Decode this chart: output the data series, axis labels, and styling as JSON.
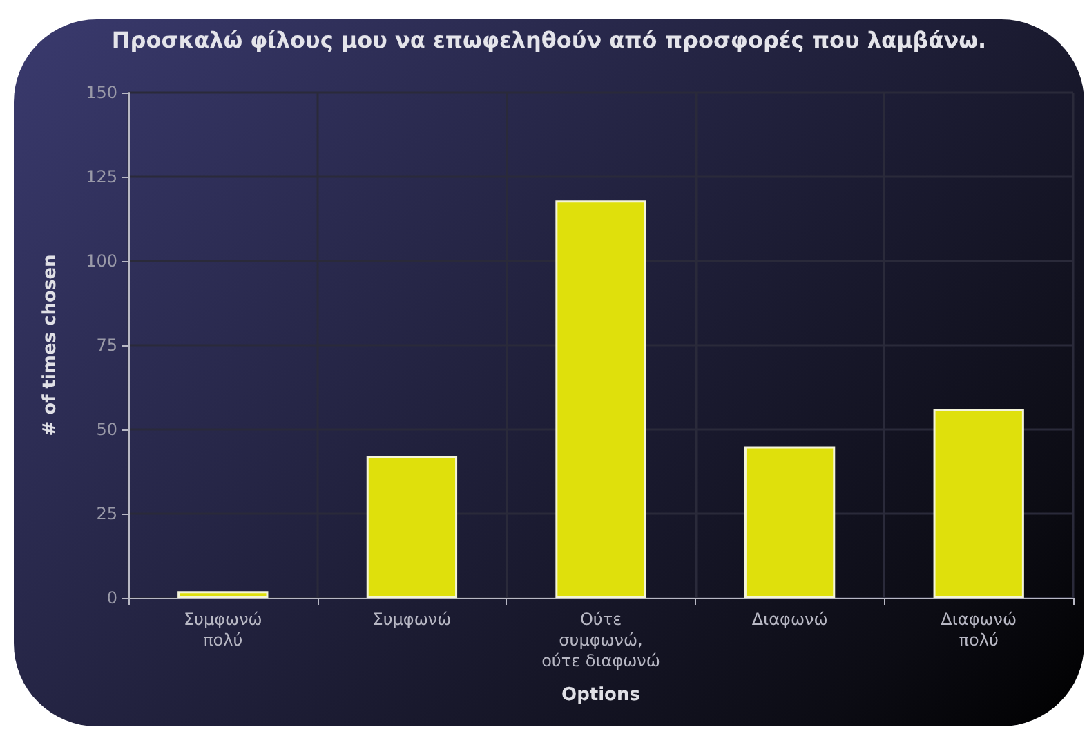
{
  "chart_data": {
    "type": "bar",
    "title": "Προσκαλώ φίλους μου να επωφεληθούν από προσφορές που λαμβάνω.",
    "xlabel": "Options",
    "ylabel": "# of times chosen",
    "categories": [
      "Συμφωνώ\nπολύ",
      "Συμφωνώ",
      "Ούτε\nσυμφωνώ,\nούτε διαφωνώ",
      "Διαφωνώ",
      "Διαφωνώ\nπολύ"
    ],
    "values": [
      2,
      42,
      118,
      45,
      56
    ],
    "color": "#dfe00c",
    "ylim": [
      0,
      150
    ],
    "yticks": [
      0,
      25,
      50,
      75,
      100,
      125,
      150
    ],
    "grid": true
  }
}
